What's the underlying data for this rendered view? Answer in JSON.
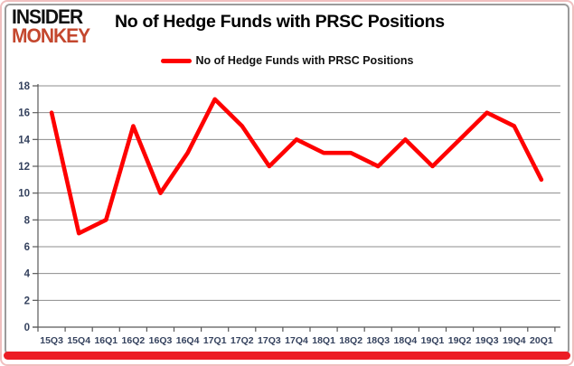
{
  "logo": {
    "line1": "INSIDER",
    "line2": "MONKEY",
    "line1_color": "#111111",
    "line2_color": "#C4472E"
  },
  "header": {
    "title": "No of Hedge Funds with PRSC Positions"
  },
  "legend": {
    "label": "No of Hedge Funds with PRSC Positions",
    "swatch_color": "#FE0000",
    "position": "top-center"
  },
  "chart_data": {
    "type": "line",
    "title": "No of Hedge Funds with PRSC Positions",
    "series": [
      {
        "name": "No of Hedge Funds with PRSC Positions",
        "values": [
          16,
          7,
          8,
          15,
          10,
          13,
          17,
          15,
          12,
          14,
          13,
          13,
          12,
          14,
          12,
          14,
          16,
          15,
          11
        ]
      }
    ],
    "categories": [
      "15Q3",
      "15Q4",
      "16Q1",
      "16Q2",
      "16Q3",
      "16Q4",
      "17Q1",
      "17Q2",
      "17Q3",
      "17Q4",
      "18Q1",
      "18Q2",
      "18Q3",
      "18Q4",
      "19Q1",
      "19Q2",
      "19Q3",
      "19Q4",
      "20Q1"
    ],
    "xlabel": "",
    "ylabel": "",
    "ylim": [
      0,
      18
    ],
    "ytick_step": 2,
    "grid": true,
    "legend_position": "top"
  },
  "colors": {
    "line": "#FE0000",
    "grid": "#8C8C8C",
    "axis": "#595959",
    "tick_label": "#35425E",
    "accent_red": "#EC1C24",
    "border_pink": "#F0BFBF",
    "frame_gray": "#9B9B9B"
  }
}
